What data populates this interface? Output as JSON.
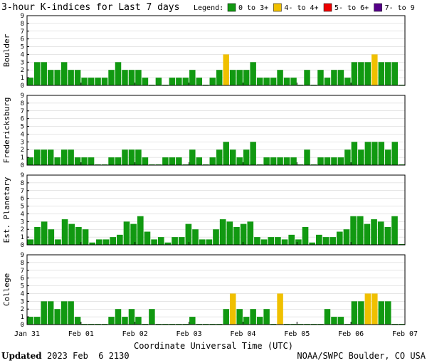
{
  "colors": {
    "low": "#119911",
    "mid": "#f0c000",
    "high": "#ee0000",
    "severe": "#550088",
    "frame": "#000000",
    "grid": "#cccccc"
  },
  "chart_data": {
    "type": "bar",
    "title": "3-hour K-indices for Last 7 days",
    "legend": {
      "label": "Legend:",
      "placement": "top-right",
      "items": [
        {
          "label": "0 to 3+",
          "color": "#119911"
        },
        {
          "label": "4- to 4+",
          "color": "#f0c000"
        },
        {
          "label": "5- to 6+",
          "color": "#ee0000"
        },
        {
          "label": "7- to 9",
          "color": "#550088"
        }
      ]
    },
    "ylim": [
      0,
      9
    ],
    "y_ticks": [
      "0",
      "1",
      "2",
      "3",
      "4",
      "5",
      "6",
      "7",
      "8",
      "9"
    ],
    "grid": true,
    "x_ticks": [
      "Jan 31",
      "Feb 01",
      "Feb 02",
      "Feb 03",
      "Feb 04",
      "Feb 05",
      "Feb 06",
      "Feb 07"
    ],
    "xlabel": "Coordinate Universal Time (UTC)",
    "panels": [
      {
        "name": "Boulder",
        "values": [
          1,
          3,
          3,
          2,
          2,
          3,
          2,
          2,
          1,
          1,
          1,
          1,
          2,
          3,
          2,
          2,
          2,
          1,
          0,
          1,
          0,
          1,
          1,
          1,
          2,
          1,
          0,
          1,
          2,
          4,
          2,
          2,
          2,
          3,
          1,
          1,
          1,
          2,
          1,
          1,
          0,
          2,
          0,
          2,
          1,
          2,
          2,
          1,
          3,
          3,
          3,
          4,
          3,
          3,
          3,
          0
        ]
      },
      {
        "name": "Fredericksburg",
        "values": [
          1,
          2,
          2,
          2,
          1,
          2,
          2,
          1,
          1,
          1,
          0,
          0,
          1,
          1,
          2,
          2,
          2,
          1,
          0,
          0,
          1,
          1,
          1,
          0,
          2,
          1,
          0,
          1,
          2,
          3,
          2,
          1,
          2,
          3,
          0,
          1,
          1,
          1,
          1,
          1,
          0,
          2,
          0,
          1,
          1,
          1,
          1,
          2,
          3,
          2,
          3,
          3,
          3,
          2,
          3,
          0
        ]
      },
      {
        "name": "Est. Planetary",
        "values": [
          0.7,
          2.3,
          3,
          2,
          0.7,
          3.3,
          2.7,
          2.3,
          2,
          0.3,
          0.7,
          0.7,
          1,
          1.3,
          3,
          2.7,
          3.7,
          1.7,
          0.7,
          1,
          0.3,
          1,
          1,
          2.7,
          2,
          0.7,
          0.7,
          2,
          3.3,
          3,
          2.3,
          2.7,
          3,
          1,
          0.7,
          1,
          1,
          0.7,
          1.3,
          0.7,
          2.3,
          0.3,
          1.3,
          1,
          1,
          1.7,
          2,
          3.7,
          3.7,
          2.7,
          3.3,
          3,
          2.3,
          3.7,
          0
        ]
      },
      {
        "name": "College",
        "values": [
          1,
          1,
          3,
          3,
          2,
          3,
          3,
          1,
          0,
          0,
          0,
          0,
          1,
          2,
          1,
          2,
          1,
          0,
          2,
          0,
          0,
          0,
          0,
          0,
          1,
          0,
          0,
          0,
          0,
          2,
          4,
          2,
          1,
          2,
          1,
          2,
          0,
          4,
          0,
          0,
          0,
          0,
          0,
          0,
          2,
          1,
          1,
          0,
          3,
          3,
          4,
          4,
          3,
          3,
          0,
          0
        ]
      }
    ]
  },
  "footer": {
    "updated_label": "Updated",
    "updated_value": "2023 Feb  6 2130",
    "credit": "NOAA/SWPC Boulder, CO USA"
  }
}
